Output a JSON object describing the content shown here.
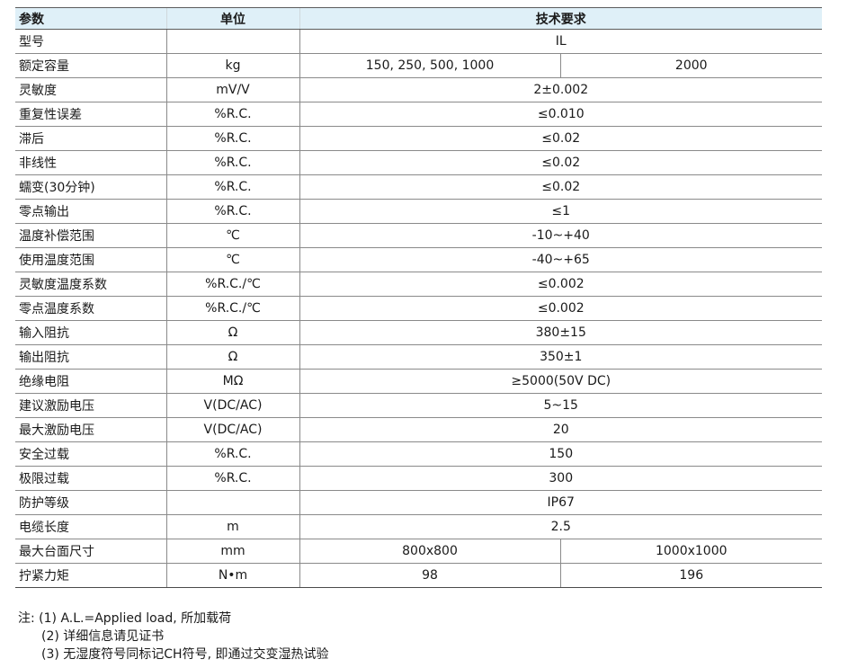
{
  "table": {
    "headers": {
      "param": "参数",
      "unit": "单位",
      "requirement": "技术要求"
    },
    "rows": [
      {
        "param": "型号",
        "unit": "",
        "value": "IL"
      },
      {
        "param": "额定容量",
        "unit": "kg",
        "values": [
          "150, 250, 500, 1000",
          "2000"
        ]
      },
      {
        "param": "灵敏度",
        "unit": "mV/V",
        "value": "2±0.002"
      },
      {
        "param": "重复性误差",
        "unit": "%R.C.",
        "value": "≤0.010"
      },
      {
        "param": "滞后",
        "unit": "%R.C.",
        "value": "≤0.02"
      },
      {
        "param": "非线性",
        "unit": "%R.C.",
        "value": "≤0.02"
      },
      {
        "param": "蠕变(30分钟)",
        "unit": "%R.C.",
        "value": "≤0.02"
      },
      {
        "param": "零点输出",
        "unit": "%R.C.",
        "value": "≤1"
      },
      {
        "param": "温度补偿范围",
        "unit": "℃",
        "value": "-10~+40"
      },
      {
        "param": "使用温度范围",
        "unit": "℃",
        "value": "-40~+65"
      },
      {
        "param": "灵敏度温度系数",
        "unit": "%R.C./℃",
        "value": "≤0.002"
      },
      {
        "param": "零点温度系数",
        "unit": "%R.C./℃",
        "value": "≤0.002"
      },
      {
        "param": "输入阻抗",
        "unit": "Ω",
        "value": "380±15"
      },
      {
        "param": "输出阻抗",
        "unit": "Ω",
        "value": "350±1"
      },
      {
        "param": "绝缘电阻",
        "unit": "MΩ",
        "value": "≥5000(50V DC)"
      },
      {
        "param": "建议激励电压",
        "unit": "V(DC/AC)",
        "value": "5~15"
      },
      {
        "param": "最大激励电压",
        "unit": "V(DC/AC)",
        "value": "20"
      },
      {
        "param": "安全过载",
        "unit": "%R.C.",
        "value": "150"
      },
      {
        "param": "极限过载",
        "unit": "%R.C.",
        "value": "300"
      },
      {
        "param": "防护等级",
        "unit": "",
        "value": "IP67"
      },
      {
        "param": "电缆长度",
        "unit": "m",
        "value": "2.5"
      },
      {
        "param": "最大台面尺寸",
        "unit": "mm",
        "values": [
          "800x800",
          "1000x1000"
        ]
      },
      {
        "param": "拧紧力矩",
        "unit": "N•m",
        "values": [
          "98",
          "196"
        ]
      }
    ]
  },
  "notes": [
    "注: (1) A.L.=Applied load, 所加载荷",
    "(2) 详细信息请见证书",
    "(3) 无湿度符号同标记CH符号, 即通过交变湿热试验"
  ]
}
